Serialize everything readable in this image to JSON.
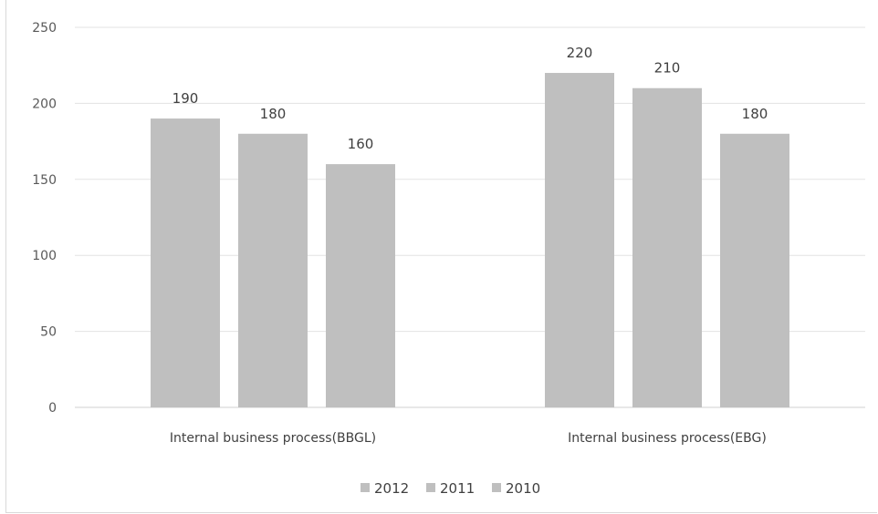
{
  "chart_data": {
    "type": "bar",
    "title": "",
    "xlabel": "",
    "ylabel": "",
    "categories": [
      "Internal business process(BBGL)",
      "Internal business process(EBG)"
    ],
    "series": [
      {
        "name": "2012",
        "values": [
          190,
          220
        ],
        "color": "#bfbfbf"
      },
      {
        "name": "2011",
        "values": [
          180,
          210
        ],
        "color": "#bfbfbf"
      },
      {
        "name": "2010",
        "values": [
          160,
          180
        ],
        "color": "#bfbfbf"
      }
    ],
    "ylim": [
      0,
      250
    ],
    "yticks": [
      0,
      50,
      100,
      150,
      200,
      250
    ],
    "grid": true,
    "legend_position": "bottom",
    "data_labels": true
  }
}
